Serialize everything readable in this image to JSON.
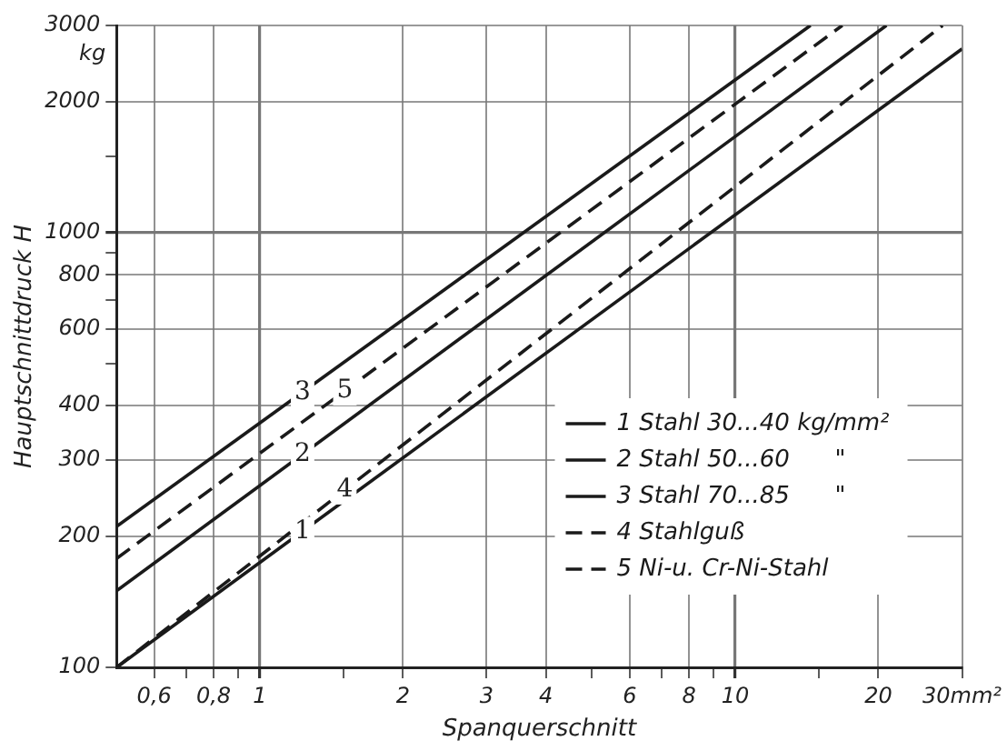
{
  "chart_data": {
    "type": "line",
    "xlabel": "Spanquerschnitt",
    "ylabel": "Hauptschnittdruck H",
    "log": "xy",
    "grid": true,
    "legend": "bottom right",
    "marker": "none",
    "xlim": [
      0.5,
      30
    ],
    "ylim": [
      100,
      3000
    ],
    "xticks": [
      {
        "value": 0.6,
        "label": "0,6"
      },
      {
        "value": 0.7,
        "label": null
      },
      {
        "value": 0.8,
        "label": "0,8"
      },
      {
        "value": 0.9,
        "label": null
      },
      1,
      {
        "value": 1.5,
        "label": null
      },
      2,
      3,
      4,
      {
        "value": 5,
        "label": null
      },
      6,
      {
        "value": 7,
        "label": null
      },
      8,
      {
        "value": 9,
        "label": null
      },
      10,
      {
        "value": 15,
        "label": null
      },
      20,
      {
        "value": 30,
        "label": "30mm²"
      }
    ],
    "yticks": [
      100,
      200,
      300,
      400,
      {
        "value": 500,
        "label": null
      },
      600,
      {
        "value": 700,
        "label": null
      },
      800,
      {
        "value": 900,
        "label": null
      },
      1000,
      {
        "value": 1500,
        "label": null
      },
      2000,
      3000
    ],
    "series": [
      {
        "name": "1 Stahl 30...40 kg/mm²",
        "color": "#1a1a1a",
        "line_style": "solid",
        "x": [
          0.5,
          30
        ],
        "values": [
          100,
          2650
        ]
      },
      {
        "name": "2 Stahl 50...60      \"",
        "color": "#1a1a1a",
        "line_style": "solid",
        "x": [
          0.5,
          20.8
        ],
        "values": [
          150,
          3000
        ]
      },
      {
        "name": "3 Stahl 70...85      \"",
        "color": "#1a1a1a",
        "line_style": "solid",
        "x": [
          0.5,
          14.4
        ],
        "values": [
          211,
          3000
        ]
      },
      {
        "name": "4 Stahlguß",
        "color": "#1a1a1a",
        "line_style": "dashed",
        "x": [
          0.5,
          27.3
        ],
        "values": [
          100,
          3000
        ]
      },
      {
        "name": "5 Ni-u. Cr-Ni-Stahl",
        "color": "#1a1a1a",
        "line_style": "dashed",
        "x": [
          0.5,
          16.8
        ],
        "values": [
          178,
          3000
        ]
      }
    ],
    "annotations": [
      "kg",
      "1",
      "2",
      "3",
      "4",
      "5"
    ]
  }
}
